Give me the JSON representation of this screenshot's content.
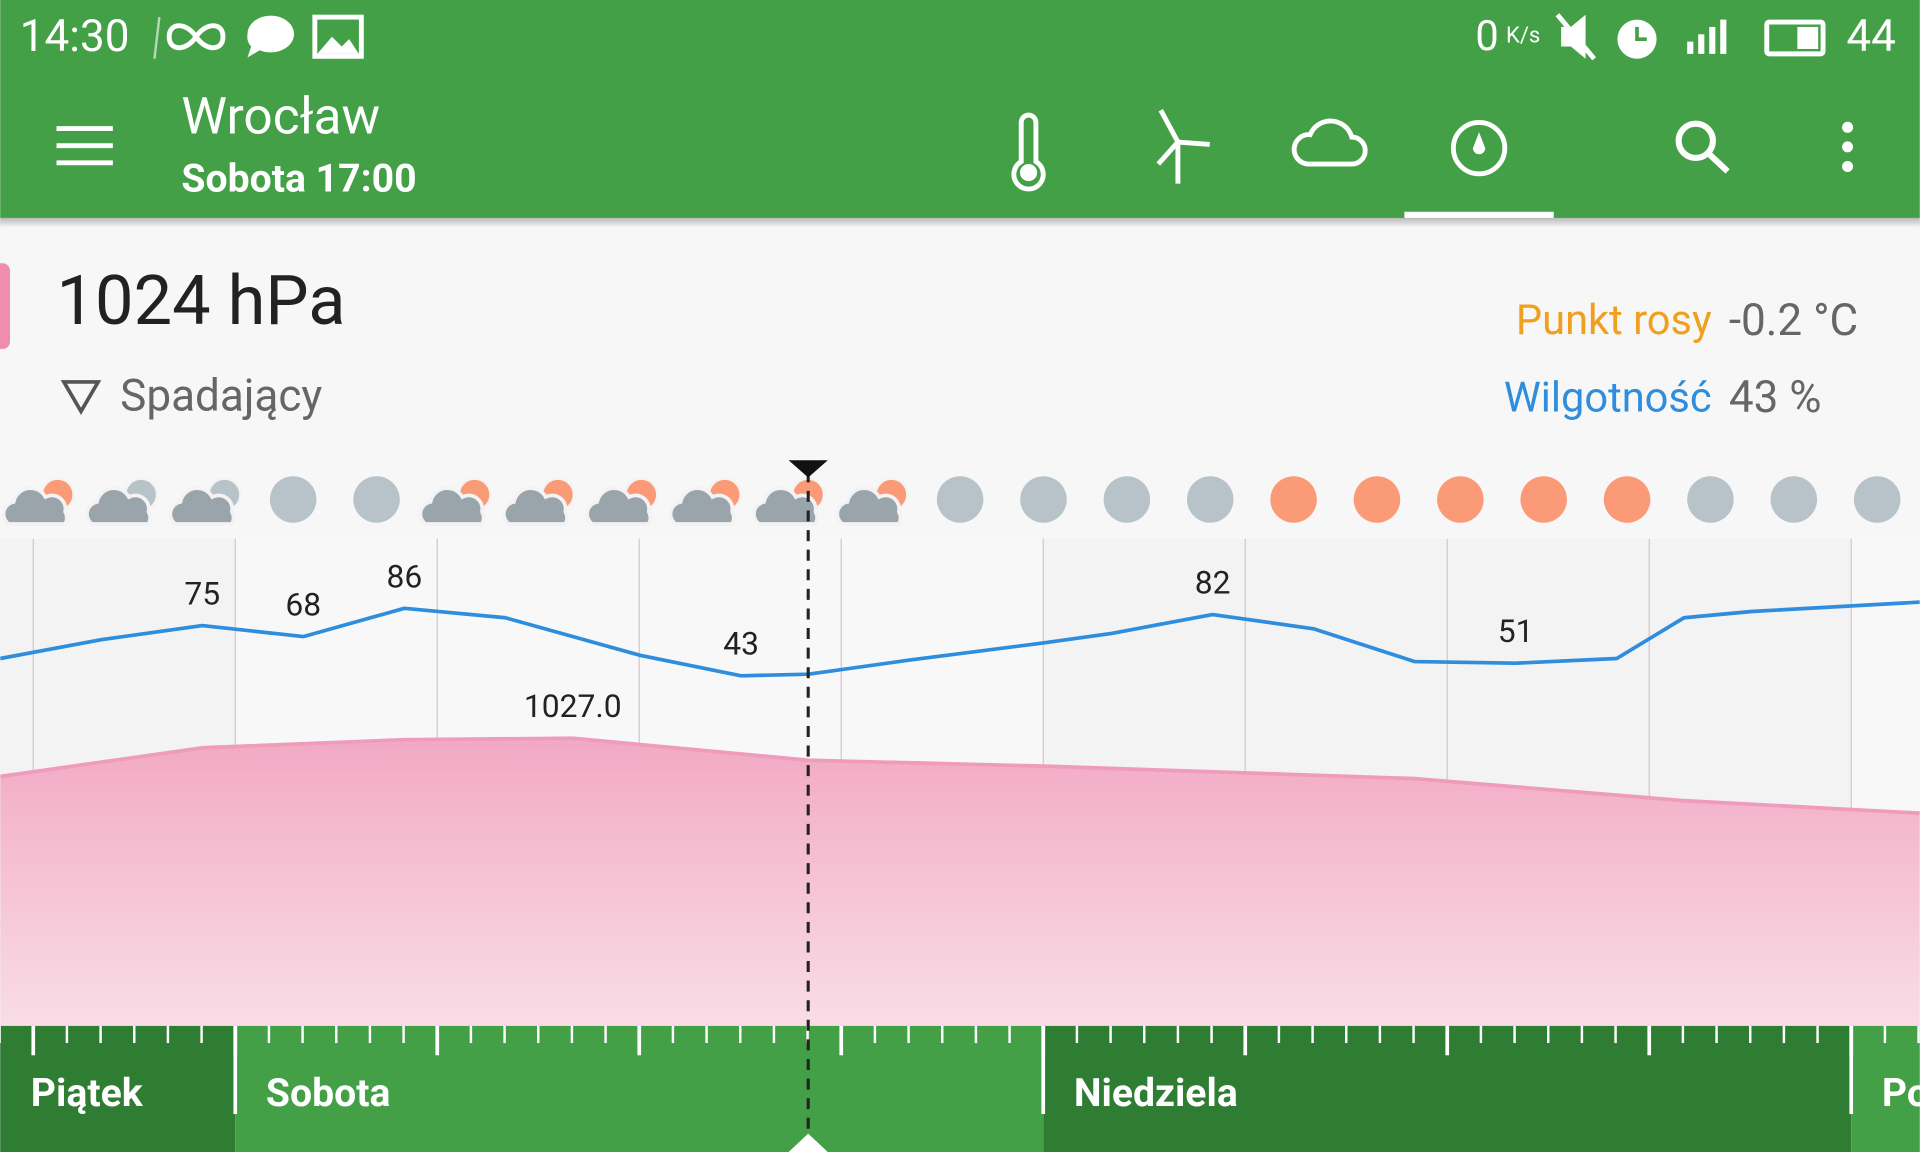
{
  "status_bar": {
    "time": "14:30",
    "speed": "0",
    "speed_unit": "K/s",
    "battery": "44"
  },
  "toolbar": {
    "city": "Wrocław",
    "datetime": "Sobota 17:00"
  },
  "summary": {
    "pressure": "1024 hPa",
    "trend": "Spadający",
    "dew_point": {
      "label": "Punkt rosy",
      "value": "-0.2 °C"
    },
    "humidity": {
      "label": "Wilgotność",
      "value": "43 %"
    }
  },
  "chart_data": {
    "type": "line",
    "xlim": [
      0,
      57
    ],
    "humidity": {
      "color": "#2e8ddd",
      "ylim": [
        0,
        100
      ],
      "hours": [
        0,
        3,
        6,
        9,
        12,
        15,
        19,
        22,
        24,
        27,
        31,
        33,
        36,
        39,
        42,
        45,
        48,
        50,
        52,
        57
      ],
      "values": [
        54,
        66,
        75,
        68,
        86,
        80,
        56,
        43,
        44,
        53,
        64,
        70,
        82,
        73,
        52,
        51,
        54,
        80,
        84,
        90
      ],
      "value_labels": [
        null,
        null,
        "75",
        "68",
        "86",
        null,
        null,
        "43",
        null,
        null,
        null,
        null,
        "82",
        null,
        null,
        "51",
        null,
        null,
        null,
        null
      ]
    },
    "pressure": {
      "color": "#ef9bbb",
      "ylim": [
        988,
        1031
      ],
      "hours": [
        0,
        6,
        12,
        17,
        24,
        31,
        42,
        50,
        57
      ],
      "values": [
        1021.8,
        1025.7,
        1026.8,
        1027,
        1024,
        1023.2,
        1021.5,
        1018.5,
        1016.8
      ],
      "value_labels": [
        null,
        null,
        null,
        "1027.0",
        null,
        null,
        null,
        null,
        null
      ]
    }
  },
  "day_bar": {
    "days": [
      "Piątek",
      "Sobota",
      "Niedziela",
      "Po"
    ]
  }
}
